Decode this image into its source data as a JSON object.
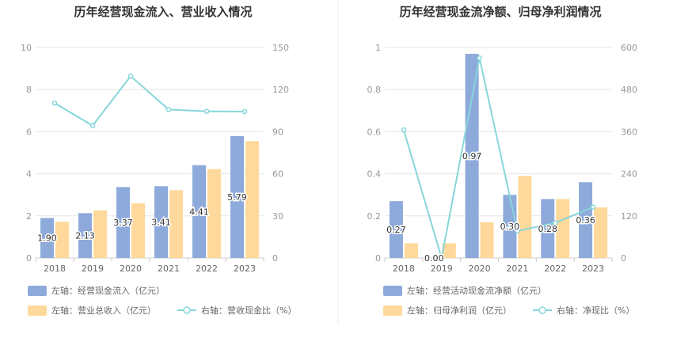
{
  "colors": {
    "left_bar": "#8eaadb",
    "right_bar": "#ffd99b",
    "line": "#86d6d9",
    "grid": "#e6e6e6",
    "divider": "#eeeeee"
  },
  "chart_data": [
    {
      "type": "bar",
      "title": "历年经营现金流入、营业收入情况",
      "categories": [
        "2018",
        "2019",
        "2020",
        "2021",
        "2022",
        "2023"
      ],
      "y_left": {
        "min": 0,
        "max": 10,
        "ticks": [
          "0",
          "2",
          "4",
          "6",
          "8",
          "10"
        ]
      },
      "y_right": {
        "min": 0,
        "max": 150,
        "ticks": [
          "0",
          "30",
          "60",
          "90",
          "120",
          "150"
        ]
      },
      "series": [
        {
          "name": "左轴：经营现金流入（亿元）",
          "axis": "left",
          "kind": "bar",
          "values": [
            1.9,
            2.13,
            3.37,
            3.41,
            4.41,
            5.79
          ],
          "labels": [
            "1.90",
            "2.13",
            "3.37",
            "3.41",
            "4.41",
            "5.79"
          ]
        },
        {
          "name": "左轴：营业总收入（亿元）",
          "axis": "left",
          "kind": "bar",
          "values": [
            1.72,
            2.26,
            2.6,
            3.22,
            4.22,
            5.55
          ]
        },
        {
          "name": "右轴：营收现金比（%）",
          "axis": "right",
          "kind": "line",
          "values": [
            110.4,
            94.3,
            129.6,
            105.8,
            104.5,
            104.3
          ]
        }
      ],
      "legend_position": "bottom",
      "grid": true
    },
    {
      "type": "bar",
      "title": "历年经营现金流净额、归母净利润情况",
      "categories": [
        "2018",
        "2019",
        "2020",
        "2021",
        "2022",
        "2023"
      ],
      "y_left": {
        "min": 0,
        "max": 1,
        "ticks": [
          "0",
          "0.2",
          "0.4",
          "0.6",
          "0.8",
          "1"
        ]
      },
      "y_right": {
        "min": 0,
        "max": 600,
        "ticks": [
          "0",
          "120",
          "240",
          "360",
          "480",
          "600"
        ]
      },
      "series": [
        {
          "name": "左轴：经营活动现金流净额（亿元）",
          "axis": "left",
          "kind": "bar",
          "values": [
            0.27,
            0.0,
            0.97,
            0.3,
            0.28,
            0.36
          ],
          "labels": [
            "0.27",
            "0.00",
            "0.97",
            "0.30",
            "0.28",
            "0.36"
          ]
        },
        {
          "name": "左轴：归母净利润（亿元）",
          "axis": "left",
          "kind": "bar",
          "values": [
            0.07,
            0.07,
            0.17,
            0.39,
            0.28,
            0.24
          ]
        },
        {
          "name": "右轴：净现比（%）",
          "axis": "right",
          "kind": "line",
          "values": [
            365,
            0,
            570,
            77,
            100,
            145
          ]
        }
      ],
      "legend_position": "bottom",
      "grid": true
    }
  ]
}
